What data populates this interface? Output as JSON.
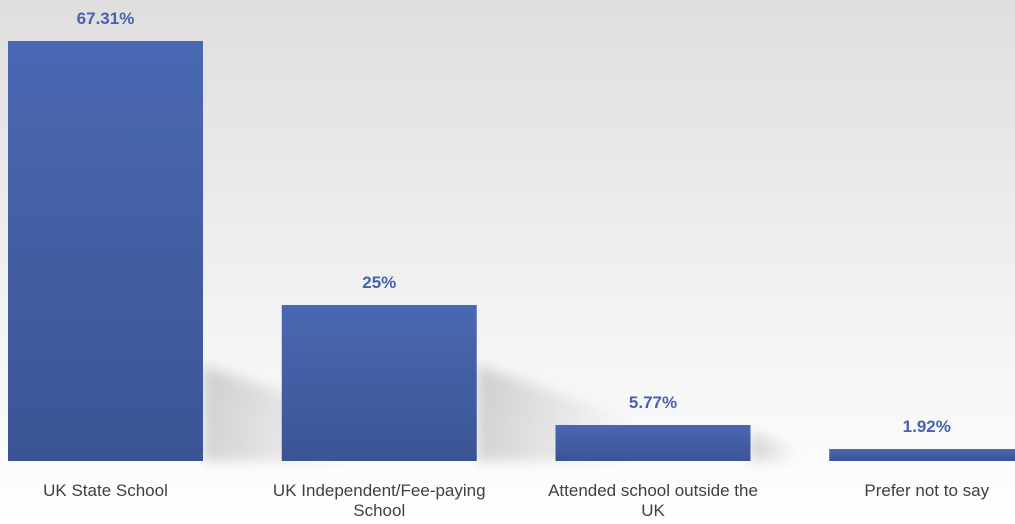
{
  "chart_data": {
    "type": "bar",
    "title": "",
    "xlabel": "",
    "ylabel": "",
    "categories": [
      "UK State School",
      "UK Independent/Fee-paying School",
      "Attended school outside the UK",
      "Prefer not to say"
    ],
    "category_label_lines": [
      [
        "UK State School"
      ],
      [
        "UK Independent/Fee-paying",
        "School"
      ],
      [
        "Attended school outside the",
        "UK"
      ],
      [
        "Prefer not to say"
      ]
    ],
    "values": [
      67.31,
      25,
      5.77,
      1.92
    ],
    "value_labels": [
      "67.31%",
      "25%",
      "5.77%",
      "1.92%"
    ],
    "ylim": [
      0,
      67.31
    ],
    "grid": false,
    "legend": "none",
    "colors": {
      "bar_top": "#4a68b2",
      "bar_bottom": "#3b5494",
      "value_label": "#4861b0",
      "category_label": "#404040"
    }
  }
}
